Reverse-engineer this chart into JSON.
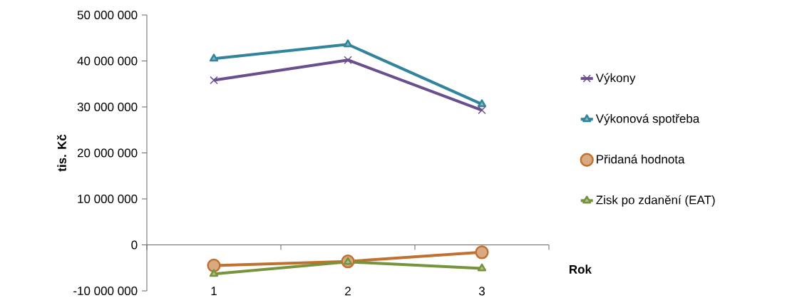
{
  "chart_data": {
    "type": "line",
    "ylabel": "tis. Kč",
    "xlabel": "Rok",
    "categories": [
      "1",
      "2",
      "3"
    ],
    "series": [
      {
        "name": "Výkony",
        "color": "#6a4f8e",
        "marker": "cross",
        "values": [
          35800000,
          40200000,
          29300000
        ]
      },
      {
        "name": "Výkonová spotřeba",
        "color": "#31849b",
        "marker": "triangle",
        "values": [
          40500000,
          43600000,
          30600000
        ]
      },
      {
        "name": "Přidaná hodnota",
        "color": "#c0712f",
        "marker": "circle",
        "values": [
          -4500000,
          -3600000,
          -1600000
        ]
      },
      {
        "name": "Zisk po zdanění (EAT)",
        "color": "#77933c",
        "marker": "triangle",
        "values": [
          -6300000,
          -3700000,
          -5100000
        ]
      }
    ],
    "ylim": [
      -10000000,
      50000000
    ],
    "yticks": [
      {
        "value": -10000000,
        "label": "-10 000 000"
      },
      {
        "value": 0,
        "label": "0"
      },
      {
        "value": 10000000,
        "label": "10 000 000"
      },
      {
        "value": 20000000,
        "label": "20 000 000"
      },
      {
        "value": 30000000,
        "label": "30 000 000"
      },
      {
        "value": 40000000,
        "label": "40 000 000"
      },
      {
        "value": 50000000,
        "label": "50 000 000"
      }
    ],
    "legend": "right"
  }
}
